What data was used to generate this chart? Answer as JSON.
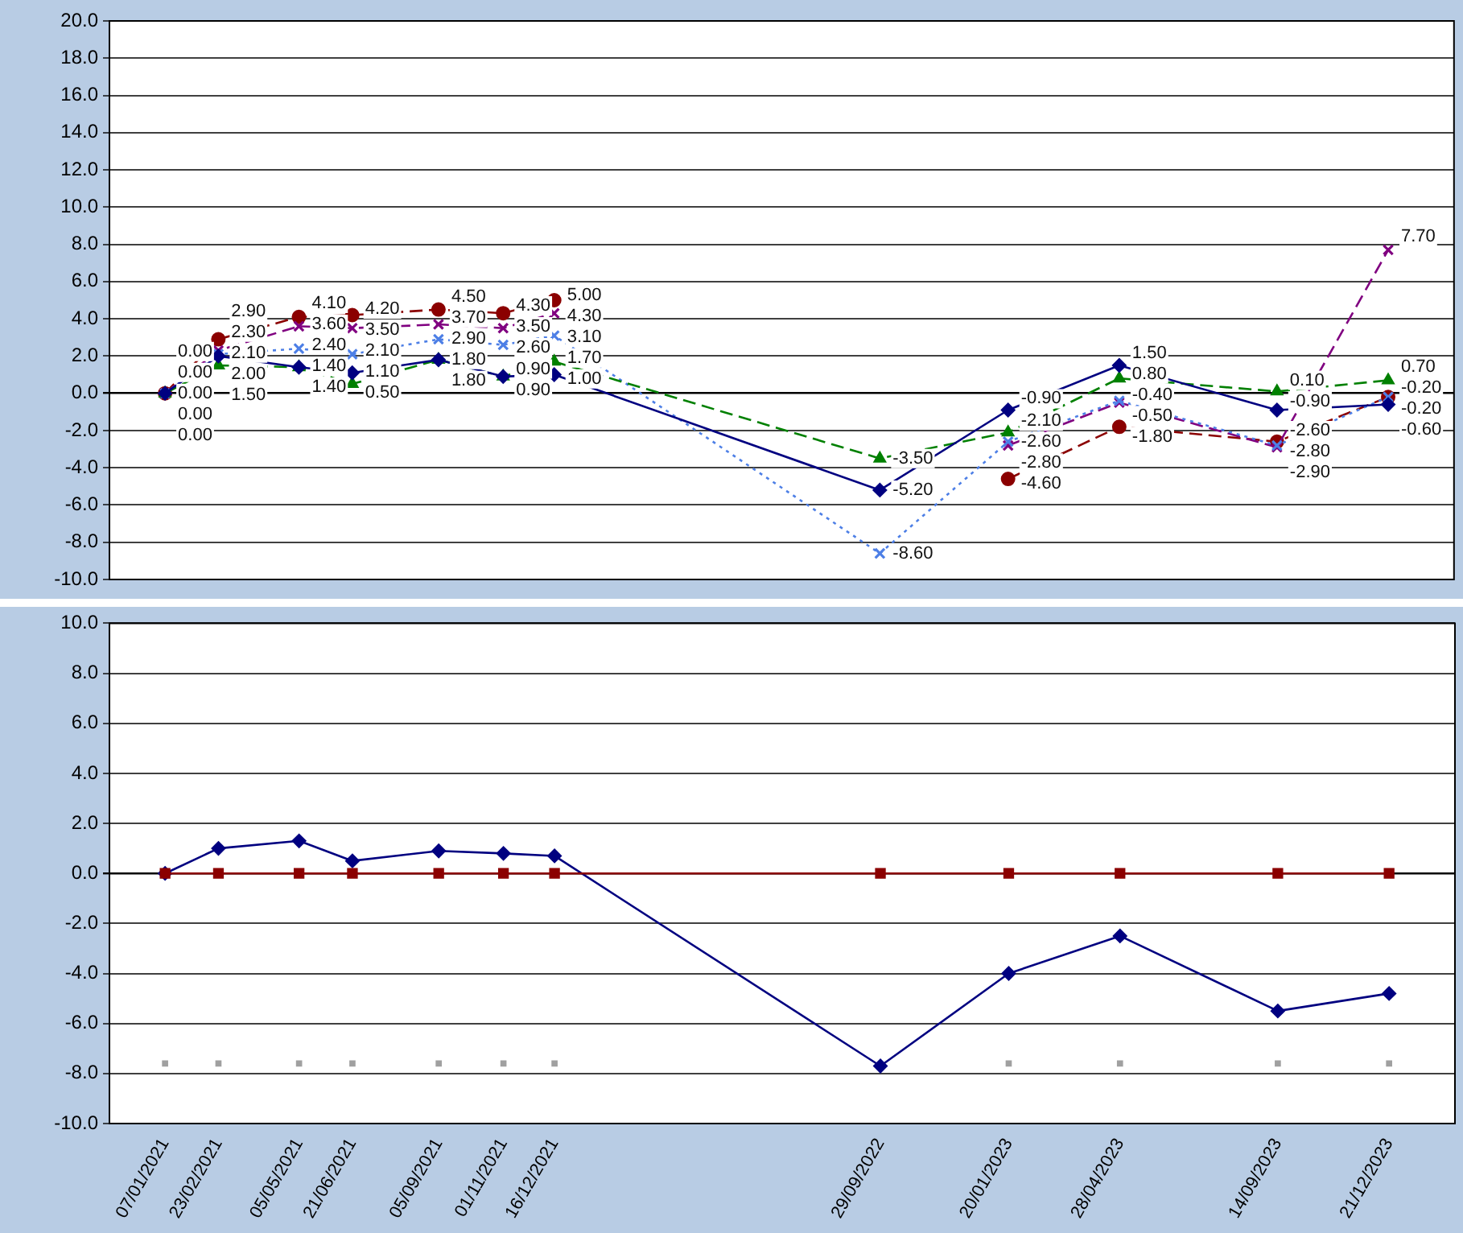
{
  "chart_data": [
    {
      "type": "line",
      "x": [
        "2021-01-07",
        "2021-02-23",
        "2021-05-05",
        "2021-06-21",
        "2021-09-05",
        "2021-11-01",
        "2021-12-16",
        "2022-09-29",
        "2023-01-20",
        "2023-04-28",
        "2023-09-14",
        "2023-12-21"
      ],
      "xlim": [
        "2020-11-19",
        "2024-02-17"
      ],
      "ylim": [
        -10,
        20
      ],
      "yticks": [
        {
          "value": -10,
          "label": "-10.0"
        },
        {
          "value": -8,
          "label": "-8.0"
        },
        {
          "value": -6,
          "label": "-6.0"
        },
        {
          "value": -4,
          "label": "-4.0"
        },
        {
          "value": -2,
          "label": "-2.0"
        },
        {
          "value": 0,
          "label": "0.0"
        },
        {
          "value": 2,
          "label": "2.0"
        },
        {
          "value": 4,
          "label": "4.0"
        },
        {
          "value": 6,
          "label": "6.0"
        },
        {
          "value": 8,
          "label": "8.0"
        },
        {
          "value": 10,
          "label": "10.0"
        },
        {
          "value": 12,
          "label": "12.0"
        },
        {
          "value": 14,
          "label": "14.0"
        },
        {
          "value": 16,
          "label": "16.0"
        },
        {
          "value": 18,
          "label": "18.0"
        },
        {
          "value": 20,
          "label": "20.0"
        }
      ],
      "tick_labels": "y",
      "grid": "y",
      "legend": false,
      "series": [
        {
          "color": "#000080",
          "marker": "diamond",
          "line_style": "solid",
          "values": [
            0,
            2.0,
            1.4,
            1.1,
            1.8,
            0.9,
            1.0,
            -5.2,
            -0.9,
            1.5,
            -0.9,
            -0.6
          ],
          "value_labels": [
            "0.00",
            "2.00",
            "1.40",
            "1.10",
            "1.80",
            "0.90",
            "1.00",
            "-5.20",
            "-0.90",
            "1.50",
            "-0.90",
            "-0.60"
          ]
        },
        {
          "color": "#008000",
          "marker": "triangle",
          "line_style": "dashed",
          "values": [
            0,
            1.5,
            1.4,
            0.5,
            1.8,
            0.9,
            1.7,
            -3.5,
            -2.1,
            0.8,
            0.1,
            0.7
          ],
          "value_labels": [
            "0.00",
            "1.50",
            "1.40",
            "0.50",
            "1.80",
            "0.90",
            "1.70",
            "-3.50",
            "-2.10",
            "0.80",
            "0.10",
            "0.70"
          ]
        },
        {
          "color": "#4d7fe6",
          "marker": "cross",
          "line_style": "dotted",
          "values": [
            0,
            2.1,
            2.4,
            2.1,
            2.9,
            2.6,
            3.1,
            -8.6,
            -2.6,
            -0.4,
            -2.8,
            -0.2
          ],
          "value_labels": [
            "0.00",
            "2.10",
            "2.40",
            "2.10",
            "2.90",
            "2.60",
            "3.10",
            "-8.60",
            "-2.60",
            "-0.40",
            "-2.80",
            "-0.20"
          ]
        },
        {
          "color": "#800080",
          "marker": "cross",
          "line_style": "dashed",
          "values": [
            0,
            2.3,
            3.6,
            3.5,
            3.7,
            3.5,
            4.3,
            null,
            -2.8,
            -0.5,
            -2.9,
            7.7
          ],
          "value_labels": [
            "0.00",
            "2.30",
            "3.60",
            "3.50",
            "3.70",
            "3.50",
            "4.30",
            null,
            "-2.80",
            "-0.50",
            "-2.90",
            "7.70"
          ]
        },
        {
          "color": "#8b0000",
          "marker": "circle",
          "line_style": "dashed",
          "values": [
            0,
            2.9,
            4.1,
            4.2,
            4.5,
            4.3,
            5.0,
            null,
            -4.6,
            -1.8,
            -2.6,
            -0.2
          ],
          "value_labels": [
            "0.00",
            "2.90",
            "4.10",
            "4.20",
            "4.50",
            "4.30",
            "5.00",
            null,
            "-4.60",
            "-1.80",
            "-2.60",
            "-0.20"
          ]
        }
      ]
    },
    {
      "type": "line",
      "x": [
        "2021-01-07",
        "2021-02-23",
        "2021-05-05",
        "2021-06-21",
        "2021-09-05",
        "2021-11-01",
        "2021-12-16",
        "2022-09-29",
        "2023-01-20",
        "2023-04-28",
        "2023-09-14",
        "2023-12-21"
      ],
      "xlim": [
        "2020-11-19",
        "2024-02-17"
      ],
      "ylim": [
        -10,
        10
      ],
      "yticks": [
        {
          "value": -10,
          "label": "-10.0"
        },
        {
          "value": -8,
          "label": "-8.0"
        },
        {
          "value": -6,
          "label": "-6.0"
        },
        {
          "value": -4,
          "label": "-4.0"
        },
        {
          "value": -2,
          "label": "-2.0"
        },
        {
          "value": 0,
          "label": "0.0"
        },
        {
          "value": 2,
          "label": "2.0"
        },
        {
          "value": 4,
          "label": "4.0"
        },
        {
          "value": 6,
          "label": "6.0"
        },
        {
          "value": 8,
          "label": "8.0"
        },
        {
          "value": 10,
          "label": "10.0"
        }
      ],
      "xticks": [
        {
          "value": "2021-01-07",
          "label": "07/01/2021"
        },
        {
          "value": "2021-02-23",
          "label": "23/02/2021"
        },
        {
          "value": "2021-05-05",
          "label": "05/05/2021"
        },
        {
          "value": "2021-06-21",
          "label": "21/06/2021"
        },
        {
          "value": "2021-09-05",
          "label": "05/09/2021"
        },
        {
          "value": "2021-11-01",
          "label": "01/11/2021"
        },
        {
          "value": "2021-12-16",
          "label": "16/12/2021"
        },
        {
          "value": "2022-09-29",
          "label": "29/09/2022"
        },
        {
          "value": "2023-01-20",
          "label": "20/01/2023"
        },
        {
          "value": "2023-04-28",
          "label": "28/04/2023"
        },
        {
          "value": "2023-09-14",
          "label": "14/09/2023"
        },
        {
          "value": "2023-12-21",
          "label": "21/12/2023"
        }
      ],
      "grid": "y",
      "legend": false,
      "series": [
        {
          "color": "#8b0000",
          "marker": "square",
          "line_style": "solid",
          "values": [
            0,
            0,
            0,
            0,
            0,
            0,
            0,
            0,
            0,
            0,
            0,
            0
          ]
        },
        {
          "color": "#000080",
          "marker": "diamond",
          "line_style": "solid",
          "values": [
            0,
            1.0,
            1.3,
            0.5,
            0.9,
            0.8,
            0.7,
            -7.7,
            -4.0,
            -2.5,
            -5.5,
            -4.8
          ]
        },
        {
          "type": "scatter",
          "color": "#a0a0a0",
          "marker": "square",
          "values": [
            -7.6,
            -7.6,
            -7.6,
            -7.6,
            -7.6,
            -7.6,
            -7.6,
            null,
            -7.6,
            -7.6,
            -7.6,
            -7.6
          ]
        }
      ]
    }
  ]
}
